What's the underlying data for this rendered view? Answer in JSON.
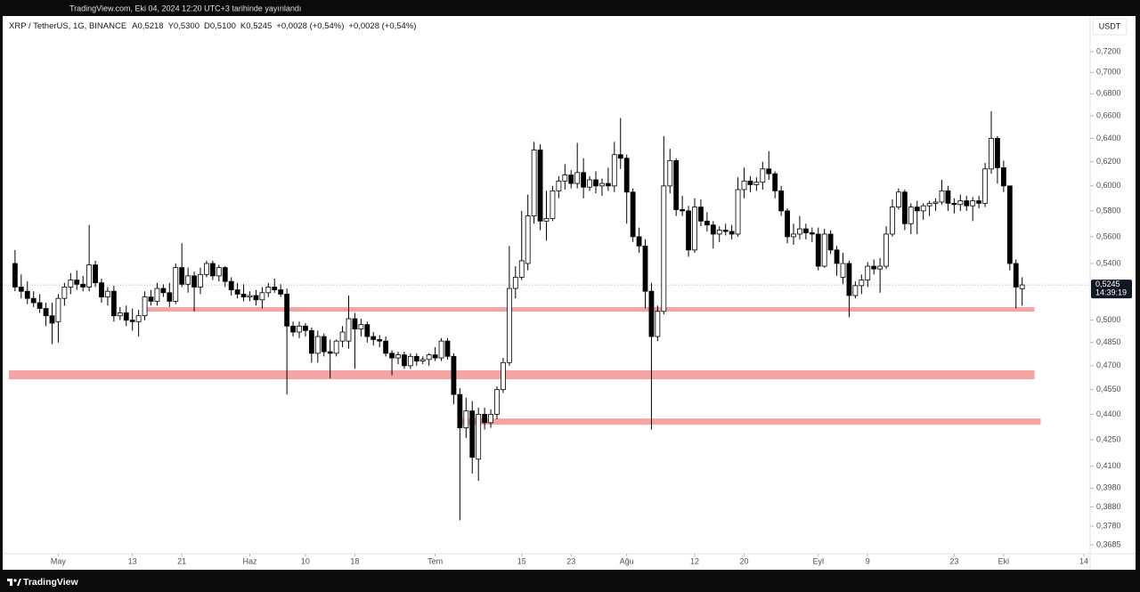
{
  "header": {
    "published": "TradingView.com, Eki 04, 2024 12:20 UTC+3 tarihinde yayınlandı",
    "brand": "TradingView"
  },
  "chart_data": {
    "type": "candlestick",
    "title": "XRP / TetherUS, 1G, BINANCE",
    "stats": [
      {
        "key": "A",
        "value": 0.5218,
        "label": "0,5218"
      },
      {
        "key": "Y",
        "value": 0.53,
        "label": "0,5300"
      },
      {
        "key": "D",
        "value": 0.51,
        "label": "0,5100"
      },
      {
        "key": "K",
        "value": 0.5245,
        "label": "0,5245"
      }
    ],
    "change": "+0,0028 (+0,54%)",
    "currency": "USDT",
    "log_scale": true,
    "grid": false,
    "up_color": "#ffffff",
    "down_color": "#000000",
    "wick_color": "#000000",
    "zone_color": "#f4a4a4",
    "ylim": [
      0.3641,
      0.7557
    ],
    "yticks": [
      {
        "value": 0.72,
        "label": "0,7200"
      },
      {
        "value": 0.7,
        "label": "0,7000"
      },
      {
        "value": 0.68,
        "label": "0,6800"
      },
      {
        "value": 0.66,
        "label": "0,6600"
      },
      {
        "value": 0.64,
        "label": "0,6400"
      },
      {
        "value": 0.62,
        "label": "0,6200"
      },
      {
        "value": 0.6,
        "label": "0,6000"
      },
      {
        "value": 0.58,
        "label": "0,5800"
      },
      {
        "value": 0.56,
        "label": "0,5600"
      },
      {
        "value": 0.54,
        "label": "0,5400"
      },
      {
        "value": 0.5,
        "label": "0,5000"
      },
      {
        "value": 0.485,
        "label": "0,4850"
      },
      {
        "value": 0.47,
        "label": "0,4700"
      },
      {
        "value": 0.455,
        "label": "0,4550"
      },
      {
        "value": 0.44,
        "label": "0,4400"
      },
      {
        "value": 0.425,
        "label": "0,4250"
      },
      {
        "value": 0.41,
        "label": "0,4100"
      },
      {
        "value": 0.398,
        "label": "0,3980"
      },
      {
        "value": 0.388,
        "label": "0,3880"
      },
      {
        "value": 0.378,
        "label": "0,3780"
      },
      {
        "value": 0.3685,
        "label": "0,3685"
      }
    ],
    "xlim": [
      "2024-04-22",
      "2024-10-15"
    ],
    "xticks": [
      {
        "value": "2024-05-01",
        "label": "May"
      },
      {
        "value": "2024-05-13",
        "label": "13"
      },
      {
        "value": "2024-05-21",
        "label": "21"
      },
      {
        "value": "2024-06-01",
        "label": "Haz"
      },
      {
        "value": "2024-06-10",
        "label": "10"
      },
      {
        "value": "2024-06-18",
        "label": "18"
      },
      {
        "value": "2024-07-01",
        "label": "Tem"
      },
      {
        "value": "2024-07-15",
        "label": "15"
      },
      {
        "value": "2024-07-23",
        "label": "23"
      },
      {
        "value": "2024-08-01",
        "label": "Ağu"
      },
      {
        "value": "2024-08-12",
        "label": "12"
      },
      {
        "value": "2024-08-20",
        "label": "20"
      },
      {
        "value": "2024-09-01",
        "label": "Eyl"
      },
      {
        "value": "2024-09-09",
        "label": "9"
      },
      {
        "value": "2024-09-23",
        "label": "23"
      },
      {
        "value": "2024-10-01",
        "label": "Eki"
      },
      {
        "value": "2024-10-14",
        "label": "14"
      }
    ],
    "last_price": {
      "value": 0.5245,
      "label": "0,5245"
    },
    "countdown": "14:39:19",
    "zones": [
      {
        "low": 0.5058,
        "high": 0.5089,
        "start": "2024-05-15",
        "end": "2024-10-06"
      },
      {
        "low": 0.4614,
        "high": 0.4671,
        "start": "2024-04-23",
        "end": "2024-10-06"
      },
      {
        "low": 0.4338,
        "high": 0.4375,
        "start": "2024-07-05",
        "end": "2024-10-07"
      }
    ],
    "x": [
      "2024-04-24",
      "2024-04-25",
      "2024-04-26",
      "2024-04-27",
      "2024-04-28",
      "2024-04-29",
      "2024-04-30",
      "2024-05-01",
      "2024-05-02",
      "2024-05-03",
      "2024-05-04",
      "2024-05-05",
      "2024-05-06",
      "2024-05-07",
      "2024-05-08",
      "2024-05-09",
      "2024-05-10",
      "2024-05-11",
      "2024-05-12",
      "2024-05-13",
      "2024-05-14",
      "2024-05-15",
      "2024-05-16",
      "2024-05-17",
      "2024-05-18",
      "2024-05-19",
      "2024-05-20",
      "2024-05-21",
      "2024-05-22",
      "2024-05-23",
      "2024-05-24",
      "2024-05-25",
      "2024-05-26",
      "2024-05-27",
      "2024-05-28",
      "2024-05-29",
      "2024-05-30",
      "2024-05-31",
      "2024-06-01",
      "2024-06-02",
      "2024-06-03",
      "2024-06-04",
      "2024-06-05",
      "2024-06-06",
      "2024-06-07",
      "2024-06-08",
      "2024-06-09",
      "2024-06-10",
      "2024-06-11",
      "2024-06-12",
      "2024-06-13",
      "2024-06-14",
      "2024-06-15",
      "2024-06-16",
      "2024-06-17",
      "2024-06-18",
      "2024-06-19",
      "2024-06-20",
      "2024-06-21",
      "2024-06-22",
      "2024-06-23",
      "2024-06-24",
      "2024-06-25",
      "2024-06-26",
      "2024-06-27",
      "2024-06-28",
      "2024-06-29",
      "2024-06-30",
      "2024-07-01",
      "2024-07-02",
      "2024-07-03",
      "2024-07-04",
      "2024-07-05",
      "2024-07-06",
      "2024-07-07",
      "2024-07-08",
      "2024-07-09",
      "2024-07-10",
      "2024-07-11",
      "2024-07-12",
      "2024-07-13",
      "2024-07-14",
      "2024-07-15",
      "2024-07-16",
      "2024-07-17",
      "2024-07-18",
      "2024-07-19",
      "2024-07-20",
      "2024-07-21",
      "2024-07-22",
      "2024-07-23",
      "2024-07-24",
      "2024-07-25",
      "2024-07-26",
      "2024-07-27",
      "2024-07-28",
      "2024-07-29",
      "2024-07-30",
      "2024-07-31",
      "2024-08-01",
      "2024-08-02",
      "2024-08-03",
      "2024-08-04",
      "2024-08-05",
      "2024-08-06",
      "2024-08-07",
      "2024-08-08",
      "2024-08-09",
      "2024-08-10",
      "2024-08-11",
      "2024-08-12",
      "2024-08-13",
      "2024-08-14",
      "2024-08-15",
      "2024-08-16",
      "2024-08-17",
      "2024-08-18",
      "2024-08-19",
      "2024-08-20",
      "2024-08-21",
      "2024-08-22",
      "2024-08-23",
      "2024-08-24",
      "2024-08-25",
      "2024-08-26",
      "2024-08-27",
      "2024-08-28",
      "2024-08-29",
      "2024-08-30",
      "2024-08-31",
      "2024-09-01",
      "2024-09-02",
      "2024-09-03",
      "2024-09-04",
      "2024-09-05",
      "2024-09-06",
      "2024-09-07",
      "2024-09-08",
      "2024-09-09",
      "2024-09-10",
      "2024-09-11",
      "2024-09-12",
      "2024-09-13",
      "2024-09-14",
      "2024-09-15",
      "2024-09-16",
      "2024-09-17",
      "2024-09-18",
      "2024-09-19",
      "2024-09-20",
      "2024-09-21",
      "2024-09-22",
      "2024-09-23",
      "2024-09-24",
      "2024-09-25",
      "2024-09-26",
      "2024-09-27",
      "2024-09-28",
      "2024-09-29",
      "2024-09-30",
      "2024-10-01",
      "2024-10-02",
      "2024-10-03",
      "2024-10-04"
    ],
    "ohlc": [
      [
        0.54,
        0.55,
        0.52,
        0.523
      ],
      [
        0.523,
        0.532,
        0.515,
        0.52
      ],
      [
        0.52,
        0.527,
        0.511,
        0.515
      ],
      [
        0.515,
        0.52,
        0.509,
        0.512
      ],
      [
        0.512,
        0.518,
        0.505,
        0.508
      ],
      [
        0.508,
        0.512,
        0.496,
        0.503
      ],
      [
        0.503,
        0.512,
        0.484,
        0.498
      ],
      [
        0.499,
        0.518,
        0.485,
        0.515
      ],
      [
        0.515,
        0.526,
        0.51,
        0.523
      ],
      [
        0.523,
        0.533,
        0.518,
        0.528
      ],
      [
        0.528,
        0.535,
        0.521,
        0.525
      ],
      [
        0.525,
        0.531,
        0.52,
        0.523
      ],
      [
        0.523,
        0.569,
        0.52,
        0.539
      ],
      [
        0.539,
        0.542,
        0.523,
        0.526
      ],
      [
        0.526,
        0.529,
        0.512,
        0.516
      ],
      [
        0.516,
        0.523,
        0.51,
        0.52
      ],
      [
        0.52,
        0.524,
        0.499,
        0.503
      ],
      [
        0.503,
        0.509,
        0.5,
        0.505
      ],
      [
        0.505,
        0.51,
        0.496,
        0.5
      ],
      [
        0.5,
        0.508,
        0.493,
        0.499
      ],
      [
        0.499,
        0.507,
        0.489,
        0.503
      ],
      [
        0.503,
        0.52,
        0.5,
        0.516
      ],
      [
        0.516,
        0.521,
        0.51,
        0.513
      ],
      [
        0.513,
        0.526,
        0.51,
        0.522
      ],
      [
        0.522,
        0.525,
        0.516,
        0.519
      ],
      [
        0.519,
        0.526,
        0.509,
        0.513
      ],
      [
        0.513,
        0.54,
        0.511,
        0.537
      ],
      [
        0.537,
        0.555,
        0.523,
        0.525
      ],
      [
        0.525,
        0.537,
        0.519,
        0.531
      ],
      [
        0.531,
        0.534,
        0.506,
        0.523
      ],
      [
        0.523,
        0.537,
        0.518,
        0.532
      ],
      [
        0.532,
        0.542,
        0.53,
        0.54
      ],
      [
        0.54,
        0.542,
        0.528,
        0.531
      ],
      [
        0.531,
        0.539,
        0.527,
        0.537
      ],
      [
        0.537,
        0.538,
        0.523,
        0.527
      ],
      [
        0.527,
        0.53,
        0.517,
        0.521
      ],
      [
        0.521,
        0.526,
        0.515,
        0.518
      ],
      [
        0.518,
        0.525,
        0.513,
        0.516
      ],
      [
        0.516,
        0.52,
        0.513,
        0.517
      ],
      [
        0.517,
        0.521,
        0.51,
        0.514
      ],
      [
        0.514,
        0.523,
        0.508,
        0.519
      ],
      [
        0.519,
        0.526,
        0.516,
        0.523
      ],
      [
        0.523,
        0.529,
        0.519,
        0.521
      ],
      [
        0.521,
        0.525,
        0.516,
        0.518
      ],
      [
        0.518,
        0.522,
        0.452,
        0.496
      ],
      [
        0.496,
        0.499,
        0.489,
        0.492
      ],
      [
        0.492,
        0.499,
        0.488,
        0.496
      ],
      [
        0.496,
        0.498,
        0.489,
        0.493
      ],
      [
        0.493,
        0.495,
        0.472,
        0.478
      ],
      [
        0.478,
        0.493,
        0.472,
        0.489
      ],
      [
        0.489,
        0.491,
        0.476,
        0.479
      ],
      [
        0.479,
        0.487,
        0.462,
        0.478
      ],
      [
        0.478,
        0.487,
        0.476,
        0.486
      ],
      [
        0.486,
        0.496,
        0.482,
        0.492
      ],
      [
        0.486,
        0.517,
        0.481,
        0.501
      ],
      [
        0.501,
        0.505,
        0.468,
        0.494
      ],
      [
        0.494,
        0.501,
        0.489,
        0.497
      ],
      [
        0.497,
        0.499,
        0.485,
        0.489
      ],
      [
        0.489,
        0.492,
        0.483,
        0.487
      ],
      [
        0.487,
        0.49,
        0.482,
        0.486
      ],
      [
        0.486,
        0.489,
        0.476,
        0.478
      ],
      [
        0.478,
        0.48,
        0.464,
        0.475
      ],
      [
        0.475,
        0.479,
        0.471,
        0.477
      ],
      [
        0.477,
        0.479,
        0.468,
        0.47
      ],
      [
        0.47,
        0.478,
        0.468,
        0.476
      ],
      [
        0.476,
        0.478,
        0.47,
        0.473
      ],
      [
        0.473,
        0.476,
        0.471,
        0.474
      ],
      [
        0.474,
        0.478,
        0.47,
        0.477
      ],
      [
        0.477,
        0.482,
        0.473,
        0.475
      ],
      [
        0.475,
        0.488,
        0.473,
        0.486
      ],
      [
        0.486,
        0.488,
        0.474,
        0.476
      ],
      [
        0.476,
        0.478,
        0.446,
        0.452
      ],
      [
        0.452,
        0.456,
        0.381,
        0.432
      ],
      [
        0.432,
        0.45,
        0.426,
        0.442
      ],
      [
        0.442,
        0.448,
        0.406,
        0.415
      ],
      [
        0.414,
        0.444,
        0.402,
        0.44
      ],
      [
        0.44,
        0.444,
        0.431,
        0.435
      ],
      [
        0.435,
        0.443,
        0.432,
        0.44
      ],
      [
        0.44,
        0.457,
        0.437,
        0.455
      ],
      [
        0.455,
        0.475,
        0.453,
        0.472
      ],
      [
        0.472,
        0.553,
        0.47,
        0.522
      ],
      [
        0.522,
        0.538,
        0.515,
        0.53
      ],
      [
        0.53,
        0.58,
        0.528,
        0.542
      ],
      [
        0.54,
        0.593,
        0.535,
        0.576
      ],
      [
        0.576,
        0.637,
        0.57,
        0.63
      ],
      [
        0.63,
        0.635,
        0.565,
        0.572
      ],
      [
        0.572,
        0.596,
        0.557,
        0.574
      ],
      [
        0.574,
        0.6,
        0.572,
        0.596
      ],
      [
        0.596,
        0.608,
        0.59,
        0.604
      ],
      [
        0.604,
        0.618,
        0.597,
        0.609
      ],
      [
        0.609,
        0.613,
        0.598,
        0.602
      ],
      [
        0.602,
        0.636,
        0.598,
        0.611
      ],
      [
        0.611,
        0.623,
        0.59,
        0.599
      ],
      [
        0.599,
        0.608,
        0.596,
        0.605
      ],
      [
        0.605,
        0.612,
        0.594,
        0.6
      ],
      [
        0.6,
        0.606,
        0.592,
        0.602
      ],
      [
        0.602,
        0.615,
        0.596,
        0.6
      ],
      [
        0.6,
        0.637,
        0.595,
        0.626
      ],
      [
        0.626,
        0.658,
        0.614,
        0.623
      ],
      [
        0.623,
        0.626,
        0.57,
        0.595
      ],
      [
        0.595,
        0.598,
        0.556,
        0.56
      ],
      [
        0.56,
        0.567,
        0.548,
        0.553
      ],
      [
        0.553,
        0.558,
        0.508,
        0.52
      ],
      [
        0.52,
        0.526,
        0.431,
        0.489
      ],
      [
        0.489,
        0.51,
        0.486,
        0.506
      ],
      [
        0.506,
        0.642,
        0.504,
        0.6
      ],
      [
        0.6,
        0.631,
        0.594,
        0.621
      ],
      [
        0.621,
        0.623,
        0.576,
        0.581
      ],
      [
        0.581,
        0.592,
        0.576,
        0.58
      ],
      [
        0.58,
        0.584,
        0.545,
        0.55
      ],
      [
        0.55,
        0.59,
        0.548,
        0.583
      ],
      [
        0.583,
        0.589,
        0.568,
        0.572
      ],
      [
        0.572,
        0.579,
        0.564,
        0.569
      ],
      [
        0.569,
        0.572,
        0.551,
        0.562
      ],
      [
        0.562,
        0.568,
        0.556,
        0.565
      ],
      [
        0.565,
        0.57,
        0.561,
        0.564
      ],
      [
        0.564,
        0.569,
        0.558,
        0.562
      ],
      [
        0.562,
        0.607,
        0.56,
        0.597
      ],
      [
        0.597,
        0.615,
        0.59,
        0.604
      ],
      [
        0.604,
        0.608,
        0.595,
        0.601
      ],
      [
        0.601,
        0.607,
        0.596,
        0.603
      ],
      [
        0.603,
        0.62,
        0.597,
        0.614
      ],
      [
        0.614,
        0.629,
        0.605,
        0.61
      ],
      [
        0.61,
        0.612,
        0.59,
        0.596
      ],
      [
        0.596,
        0.6,
        0.576,
        0.58
      ],
      [
        0.58,
        0.582,
        0.555,
        0.56
      ],
      [
        0.56,
        0.57,
        0.554,
        0.562
      ],
      [
        0.562,
        0.576,
        0.558,
        0.566
      ],
      [
        0.566,
        0.57,
        0.558,
        0.563
      ],
      [
        0.563,
        0.567,
        0.556,
        0.562
      ],
      [
        0.562,
        0.567,
        0.535,
        0.538
      ],
      [
        0.538,
        0.566,
        0.537,
        0.562
      ],
      [
        0.562,
        0.565,
        0.547,
        0.55
      ],
      [
        0.55,
        0.553,
        0.531,
        0.54
      ],
      [
        0.53,
        0.548,
        0.525,
        0.54
      ],
      [
        0.54,
        0.542,
        0.502,
        0.517
      ],
      [
        0.517,
        0.527,
        0.515,
        0.524
      ],
      [
        0.524,
        0.532,
        0.518,
        0.528
      ],
      [
        0.528,
        0.541,
        0.523,
        0.538
      ],
      [
        0.538,
        0.543,
        0.532,
        0.536
      ],
      [
        0.536,
        0.544,
        0.519,
        0.538
      ],
      [
        0.538,
        0.568,
        0.536,
        0.562
      ],
      [
        0.562,
        0.589,
        0.56,
        0.583
      ],
      [
        0.583,
        0.598,
        0.581,
        0.595
      ],
      [
        0.595,
        0.597,
        0.565,
        0.57
      ],
      [
        0.57,
        0.586,
        0.562,
        0.583
      ],
      [
        0.583,
        0.588,
        0.562,
        0.58
      ],
      [
        0.58,
        0.586,
        0.573,
        0.584
      ],
      [
        0.584,
        0.588,
        0.576,
        0.586
      ],
      [
        0.586,
        0.59,
        0.58,
        0.587
      ],
      [
        0.587,
        0.605,
        0.585,
        0.596
      ],
      [
        0.596,
        0.6,
        0.58,
        0.586
      ],
      [
        0.586,
        0.59,
        0.578,
        0.585
      ],
      [
        0.585,
        0.593,
        0.58,
        0.588
      ],
      [
        0.588,
        0.592,
        0.58,
        0.584
      ],
      [
        0.584,
        0.591,
        0.572,
        0.588
      ],
      [
        0.588,
        0.592,
        0.582,
        0.586
      ],
      [
        0.586,
        0.619,
        0.583,
        0.614
      ],
      [
        0.614,
        0.664,
        0.61,
        0.64
      ],
      [
        0.64,
        0.642,
        0.602,
        0.615
      ],
      [
        0.615,
        0.621,
        0.595,
        0.6
      ],
      [
        0.6,
        0.6,
        0.535,
        0.54
      ],
      [
        0.54,
        0.543,
        0.508,
        0.523
      ],
      [
        0.5218,
        0.53,
        0.51,
        0.5245
      ]
    ]
  }
}
